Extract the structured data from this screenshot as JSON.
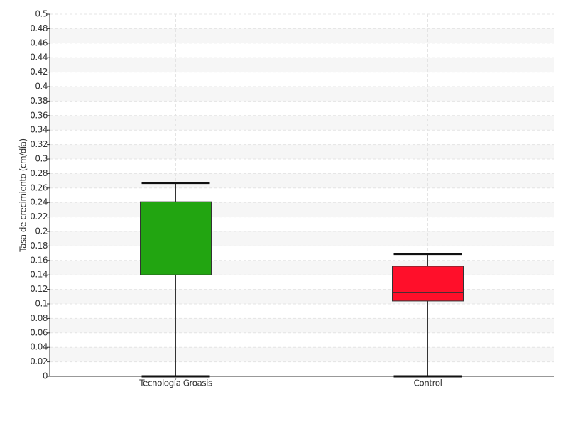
{
  "chart_data": {
    "type": "box",
    "y_label": "Tasa de crecimiento (cm/día)",
    "categories": [
      "Tecnología Groasis",
      "Control"
    ],
    "boxes": [
      {
        "min": 0,
        "q1": 0.14,
        "median": 0.176,
        "q3": 0.241,
        "max": 0.267,
        "color": "#22a511"
      },
      {
        "min": 0,
        "q1": 0.104,
        "median": 0.116,
        "q3": 0.152,
        "max": 0.169,
        "color": "#ff0f2a"
      }
    ],
    "ylim": [
      0,
      0.5
    ],
    "yticks": [
      0,
      0.02,
      0.04,
      0.06,
      0.08,
      0.1,
      0.12,
      0.14,
      0.16,
      0.18,
      0.2,
      0.22,
      0.24,
      0.26,
      0.28,
      0.3,
      0.32,
      0.34,
      0.36,
      0.38,
      0.4,
      0.42,
      0.44,
      0.46,
      0.48,
      0.5
    ],
    "grid": true
  }
}
